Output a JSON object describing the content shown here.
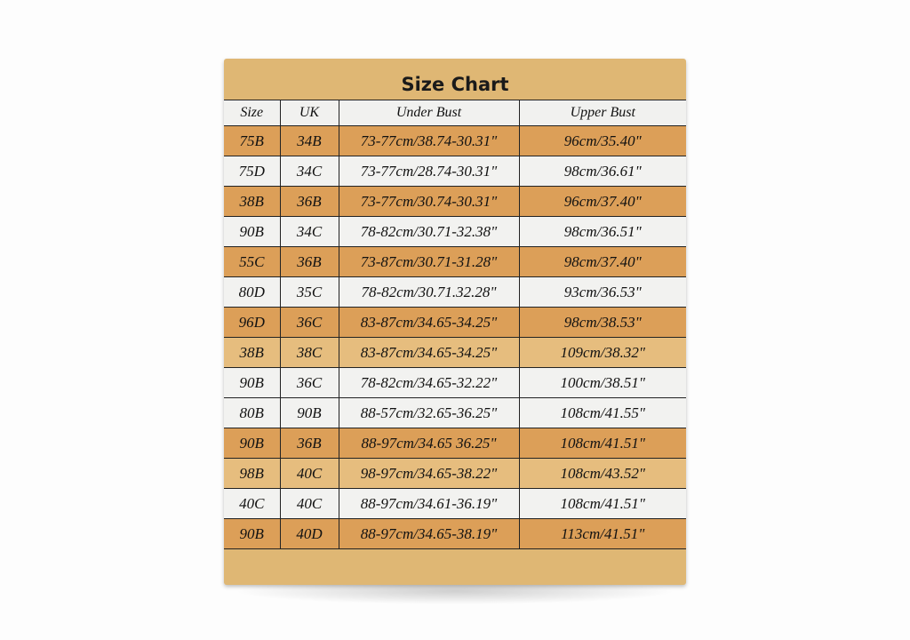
{
  "title": "Size Chart",
  "columns": [
    "Size",
    "UK",
    "Under Bust",
    "Upper Bust"
  ],
  "rows": [
    {
      "cells": [
        "75B",
        "34B",
        "73-77cm/38.74-30.31\"",
        "96cm/35.40\""
      ],
      "shade": "orange"
    },
    {
      "cells": [
        "75D",
        "34C",
        "73-77cm/28.74-30.31\"",
        "98cm/36.61\""
      ],
      "shade": "white"
    },
    {
      "cells": [
        "38B",
        "36B",
        "73-77cm/30.74-30.31\"",
        "96cm/37.40\""
      ],
      "shade": "orange"
    },
    {
      "cells": [
        "90B",
        "34C",
        "78-82cm/30.71-32.38\"",
        "98cm/36.51\""
      ],
      "shade": "white"
    },
    {
      "cells": [
        "55C",
        "36B",
        "73-87cm/30.71-31.28\"",
        "98cm/37.40\""
      ],
      "shade": "orange"
    },
    {
      "cells": [
        "80D",
        "35C",
        "78-82cm/30.71.32.28\"",
        "93cm/36.53\""
      ],
      "shade": "white"
    },
    {
      "cells": [
        "96D",
        "36C",
        "83-87cm/34.65-34.25\"",
        "98cm/38.53\""
      ],
      "shade": "orange"
    },
    {
      "cells": [
        "38B",
        "38C",
        "83-87cm/34.65-34.25\"",
        "109cm/38.32\""
      ],
      "shade": "light"
    },
    {
      "cells": [
        "90B",
        "36C",
        "78-82cm/34.65-32.22\"",
        "100cm/38.51\""
      ],
      "shade": "white"
    },
    {
      "cells": [
        "80B",
        "90B",
        "88-57cm/32.65-36.25\"",
        "108cm/41.55\""
      ],
      "shade": "white"
    },
    {
      "cells": [
        "90B",
        "36B",
        "88-97cm/34.65 36.25\"",
        "108cm/41.51\""
      ],
      "shade": "orange"
    },
    {
      "cells": [
        "98B",
        "40C",
        "98-97cm/34.65-38.22\"",
        "108cm/43.52\""
      ],
      "shade": "light"
    },
    {
      "cells": [
        "40C",
        "40C",
        "88-97cm/34.61-36.19\"",
        "108cm/41.51\""
      ],
      "shade": "white"
    },
    {
      "cells": [
        "90B",
        "40D",
        "88-97cm/34.65-38.19\"",
        "113cm/41.51\""
      ],
      "shade": "orange"
    }
  ],
  "colors": {
    "box": "#dfb774",
    "orange": "#dc9f58",
    "light": "#e6bd7e",
    "white": "#f2f2f0"
  }
}
